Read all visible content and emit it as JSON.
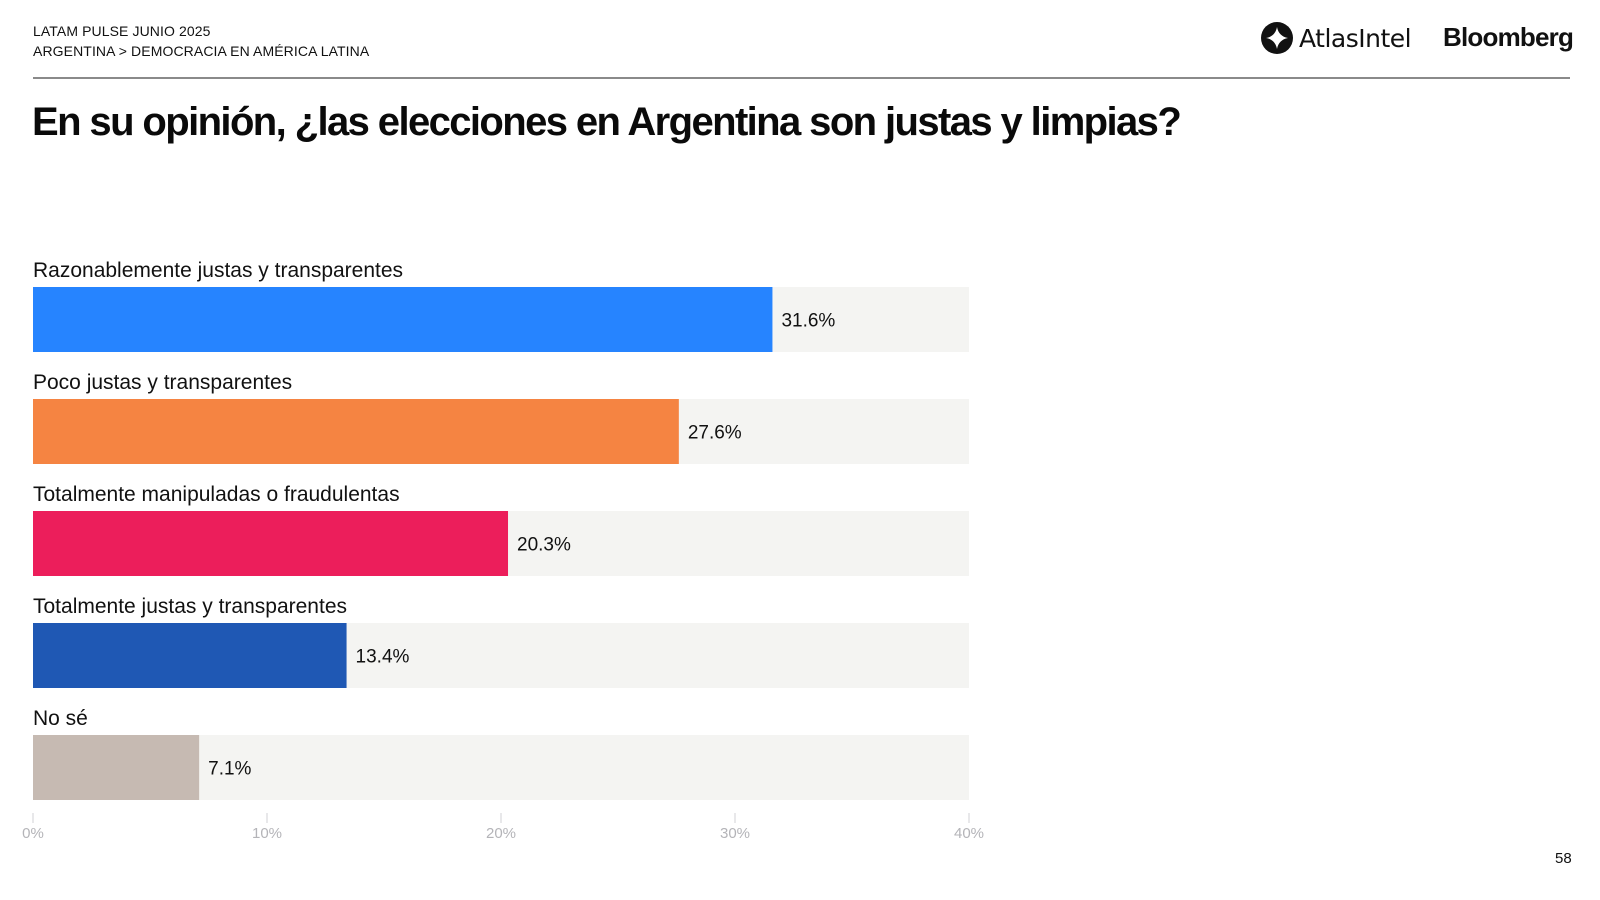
{
  "header": {
    "line1": "LATAM PULSE JUNIO 2025",
    "line2": "ARGENTINA > DEMOCRACIA EN AMÉRICA LATINA",
    "logos": {
      "atlas": "AtlasIntel",
      "bloomberg": "Bloomberg"
    }
  },
  "page_number": "58",
  "chart_data": {
    "type": "bar",
    "orientation": "horizontal",
    "title": "En su opinión, ¿las elecciones en Argentina son justas y limpias?",
    "xlabel": "",
    "ylabel": "",
    "xlim": [
      0,
      40
    ],
    "grid": false,
    "categories": [
      "Razonablemente justas y transparentes",
      "Poco justas y transparentes",
      "Totalmente manipuladas o fraudulentas",
      "Totalmente justas y transparentes",
      "No sé"
    ],
    "values": [
      31.6,
      27.6,
      20.3,
      13.4,
      7.1
    ],
    "value_labels": [
      "31.6%",
      "27.6%",
      "20.3%",
      "13.4%",
      "7.1%"
    ],
    "colors": [
      "#2684FF",
      "#F58442",
      "#EC1E5B",
      "#1F58B4",
      "#C6BAB2"
    ],
    "track_color": "#F4F4F2",
    "ticks": [
      0,
      10,
      20,
      30,
      40
    ],
    "tick_labels": [
      "0%",
      "10%",
      "20%",
      "30%",
      "40%"
    ]
  }
}
